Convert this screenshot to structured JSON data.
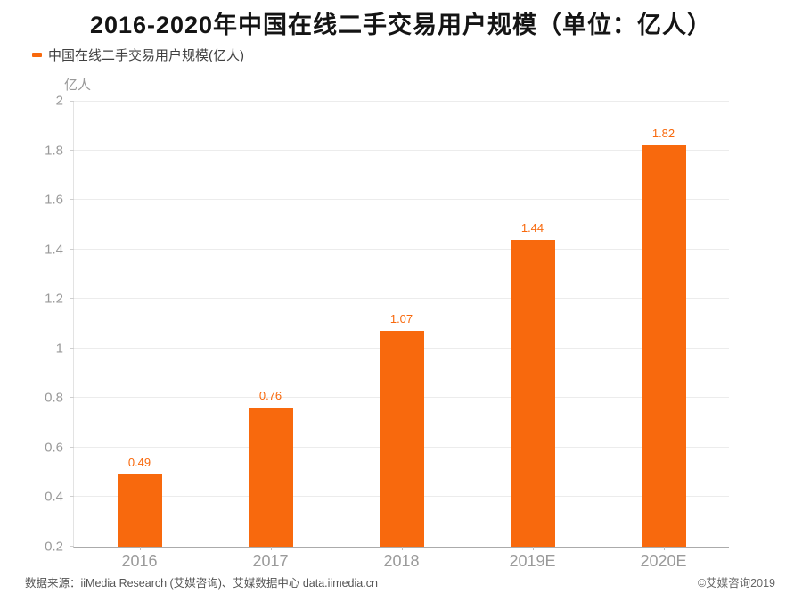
{
  "title": "2016-2020年中国在线二手交易用户规模（单位：亿人）",
  "legend": {
    "label": "中国在线二手交易用户规模(亿人)"
  },
  "chart_data": {
    "type": "bar",
    "title": "2016-2020年中国在线二手交易用户规模（单位：亿人）",
    "series_name": "中国在线二手交易用户规模(亿人)",
    "categories": [
      "2016",
      "2017",
      "2018",
      "2019E",
      "2020E"
    ],
    "values": [
      0.49,
      0.76,
      1.07,
      1.44,
      1.82
    ],
    "unit_label": "亿人",
    "xlabel": "",
    "ylabel": "亿人",
    "ylim": [
      0.2,
      2
    ],
    "y_ticks": [
      0.2,
      0.4,
      0.6,
      0.8,
      1,
      1.2,
      1.4,
      1.6,
      1.8,
      2
    ],
    "grid": true,
    "legend_position": "top-left",
    "bar_color": "#f8690d",
    "value_label_color": "#f8690d"
  },
  "colors": {
    "bar": "#f8690d",
    "title_text": "#141414",
    "axis_text": "#9a9a9a",
    "legend_text": "#404040",
    "gridline": "#ececec"
  },
  "footer": {
    "source": "数据来源：iiMedia Research (艾媒咨询)、艾媒数据中心 data.iimedia.cn",
    "copyright": "©艾媒咨询2019"
  }
}
